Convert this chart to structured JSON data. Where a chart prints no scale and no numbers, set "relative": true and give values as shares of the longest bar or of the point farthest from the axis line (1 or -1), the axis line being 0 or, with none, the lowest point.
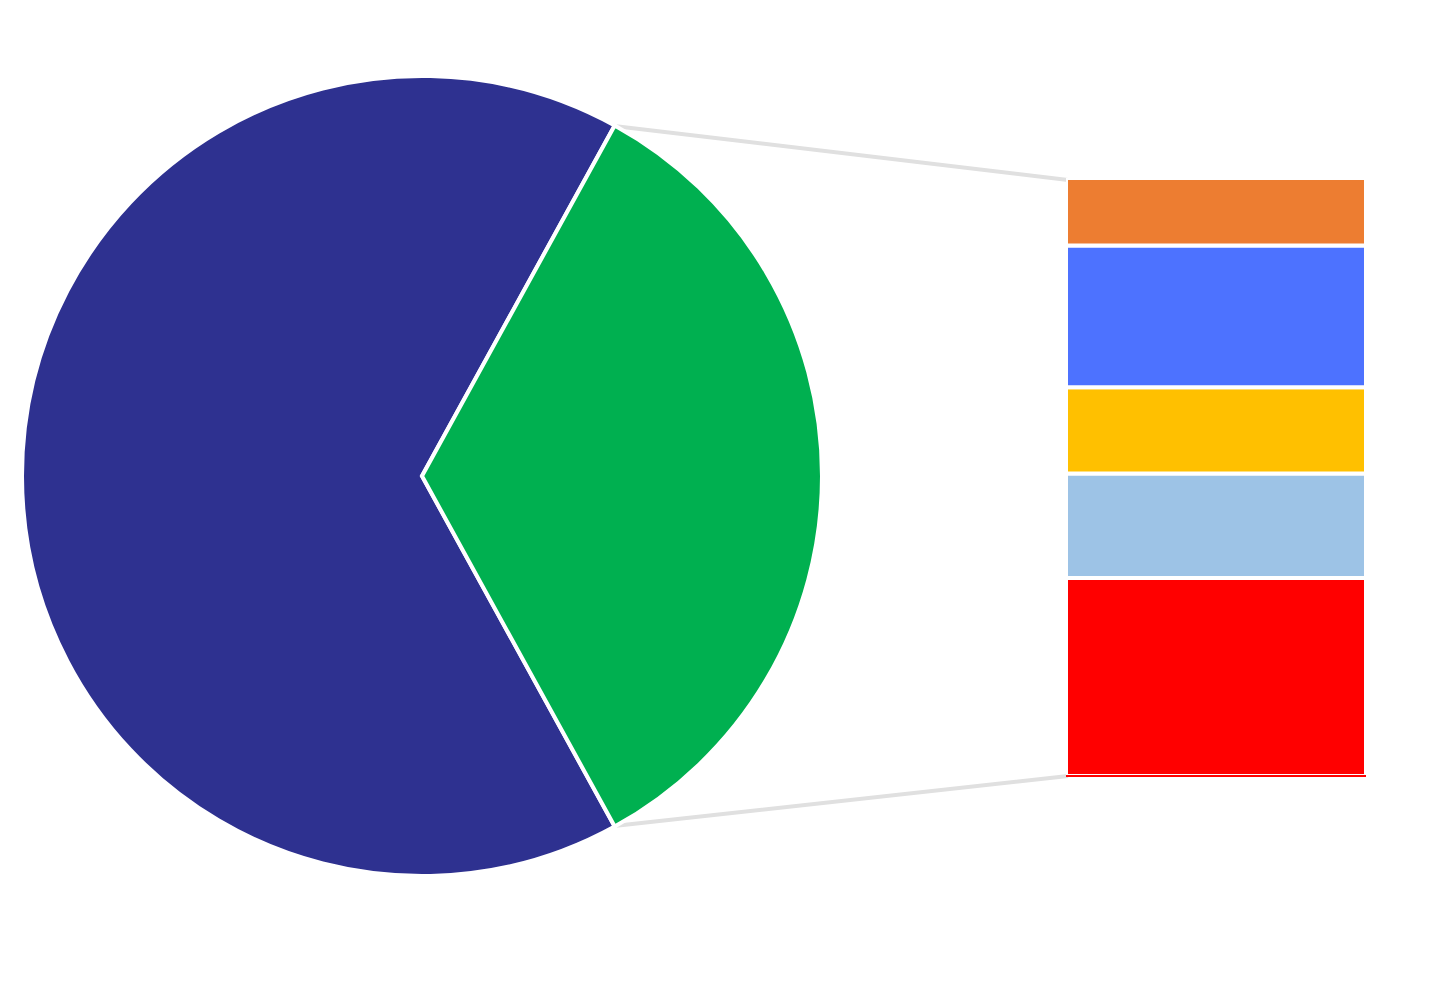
{
  "chart_data": [
    {
      "type": "pie",
      "categories": [
        null,
        null
      ],
      "values": [
        66,
        34
      ],
      "colors": [
        "#2e3190",
        "#00b050"
      ]
    },
    {
      "type": "bar",
      "stacked": true,
      "relative": true,
      "categories": [
        null
      ],
      "series": [
        {
          "color": "#ff0000",
          "values": [
            0.331
          ]
        },
        {
          "color": "#9dc3e6",
          "values": [
            0.175
          ]
        },
        {
          "color": "#ffc000",
          "values": [
            0.144
          ]
        },
        {
          "color": "#4d72ff",
          "values": [
            0.237
          ]
        },
        {
          "color": "#ed7d31",
          "values": [
            0.113
          ]
        }
      ]
    }
  ]
}
